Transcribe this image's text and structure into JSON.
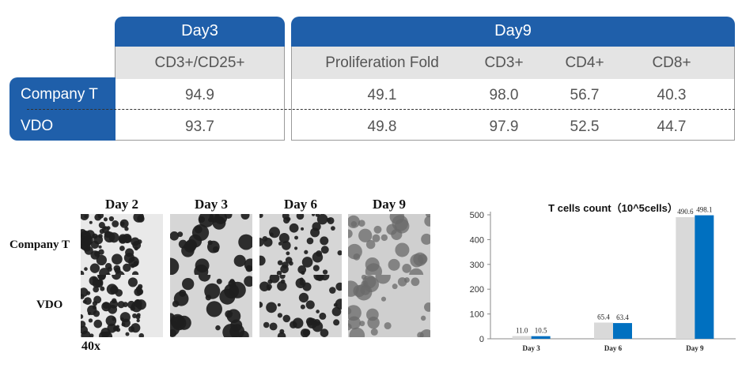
{
  "table": {
    "day3_title": "Day3",
    "day9_title": "Day9",
    "day3_columns": [
      "CD3+/CD25+"
    ],
    "day9_columns": [
      "Proliferation Fold",
      "CD3+",
      "CD4+",
      "CD8+"
    ],
    "rows": [
      {
        "label": "Company T",
        "day3": [
          "94.9"
        ],
        "day9": [
          "49.1",
          "98.0",
          "56.7",
          "40.3"
        ]
      },
      {
        "label": "VDO",
        "day3": [
          "93.7"
        ],
        "day9": [
          "49.8",
          "97.9",
          "52.5",
          "44.7"
        ]
      }
    ]
  },
  "micrographs": {
    "days": [
      "Day 2",
      "Day 3",
      "Day 6",
      "Day 9"
    ],
    "rows": [
      "Company T",
      "VDO"
    ],
    "magnification": "40x"
  },
  "chart_data": {
    "type": "bar",
    "title": "T cells count（10^5cells）",
    "categories": [
      "Day 3",
      "Day 6",
      "Day 9"
    ],
    "series": [
      {
        "values": [
          11.0,
          65.4,
          490.6
        ],
        "color": "#d9d9d9"
      },
      {
        "values": [
          10.5,
          63.4,
          498.1
        ],
        "color": "#0070c0"
      }
    ],
    "data_labels": [
      [
        "11.0",
        "65.4",
        "490.6"
      ],
      [
        "10.5",
        "63.4",
        "498.1"
      ]
    ],
    "ylim": [
      0,
      500
    ],
    "yticks": [
      0,
      100,
      200,
      300,
      400,
      500
    ],
    "grid": false
  }
}
